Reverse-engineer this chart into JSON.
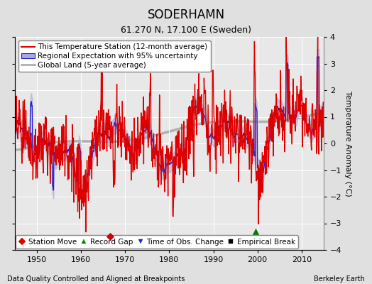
{
  "title": "SODERHAMN",
  "subtitle": "61.270 N, 17.100 E (Sweden)",
  "xlabel_bottom": "Data Quality Controlled and Aligned at Breakpoints",
  "xlabel_right": "Berkeley Earth",
  "ylabel": "Temperature Anomaly (°C)",
  "xlim": [
    1945,
    2015
  ],
  "ylim": [
    -4,
    4
  ],
  "yticks": [
    -4,
    -3,
    -2,
    -1,
    0,
    1,
    2,
    3,
    4
  ],
  "xticks": [
    1950,
    1960,
    1970,
    1980,
    1990,
    2000,
    2010
  ],
  "bg_color": "#e0e0e0",
  "plot_bg_color": "#e8e8e8",
  "station_line_color": "#dd0000",
  "regional_line_color": "#2222cc",
  "regional_fill_color": "#aaaadd",
  "global_line_color": "#b0b0b0",
  "grid_color": "#ffffff",
  "title_fontsize": 12,
  "subtitle_fontsize": 9,
  "tick_fontsize": 8,
  "ylabel_fontsize": 8,
  "legend_fontsize": 7.5,
  "annotation_fontsize": 7,
  "station_move_x": 1966.5,
  "station_move_y": -3.5,
  "record_gap_x": 1999.5,
  "record_gap_y": -3.3,
  "seed": 17
}
